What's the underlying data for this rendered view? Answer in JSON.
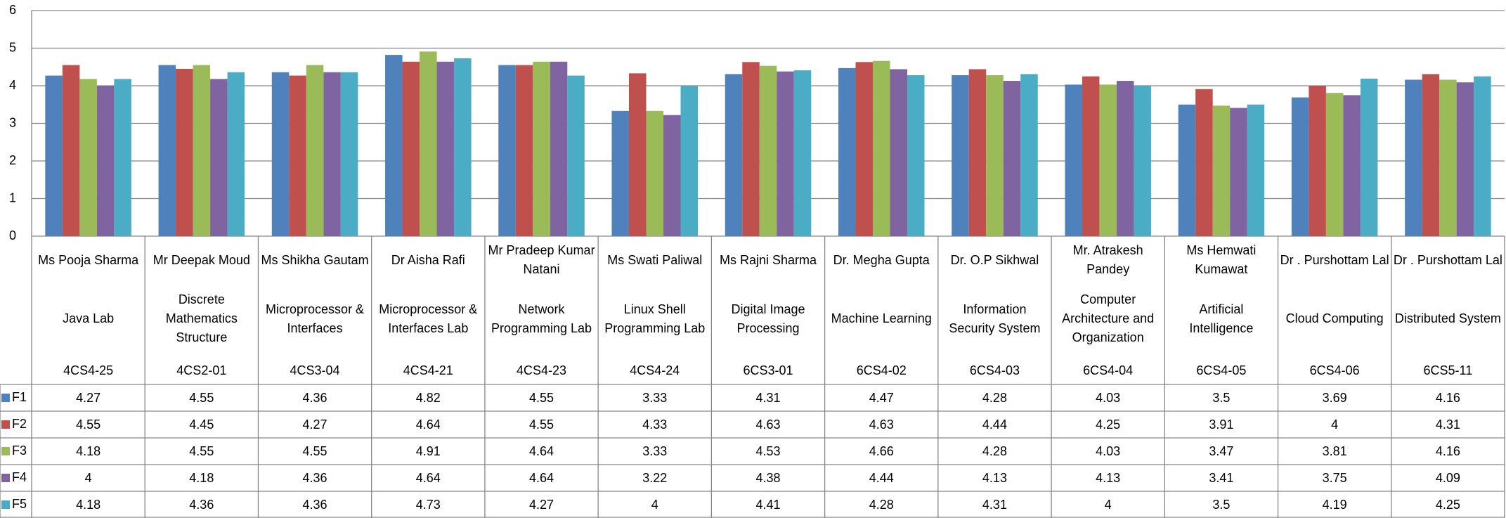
{
  "chart_data": {
    "type": "bar",
    "categories": [
      {
        "name": "Ms Pooja Sharma",
        "subject": "Java Lab",
        "code": "4CS4-25"
      },
      {
        "name": "Mr Deepak Moud",
        "subject": "Discrete Mathematics Structure",
        "code": "4CS2-01"
      },
      {
        "name": "Ms Shikha Gautam",
        "subject": "Microprocessor & Interfaces",
        "code": "4CS3-04"
      },
      {
        "name": "Dr Aisha Rafi",
        "subject": "Microprocessor & Interfaces Lab",
        "code": "4CS4-21"
      },
      {
        "name": "Mr Pradeep Kumar Natani",
        "subject": "Network Programming Lab",
        "code": "4CS4-23"
      },
      {
        "name": "Ms Swati Paliwal",
        "subject": "Linux Shell Programming Lab",
        "code": "4CS4-24"
      },
      {
        "name": "Ms Rajni Sharma",
        "subject": "Digital Image Processing",
        "code": "6CS3-01"
      },
      {
        "name": "Dr. Megha Gupta",
        "subject": "Machine Learning",
        "code": "6CS4-02"
      },
      {
        "name": "Dr. O.P Sikhwal",
        "subject": "Information Security System",
        "code": "6CS4-03"
      },
      {
        "name": "Mr. Atrakesh Pandey",
        "subject": "Computer Architecture and Organization",
        "code": "6CS4-04"
      },
      {
        "name": "Ms Hemwati Kumawat",
        "subject": "Artificial Intelligence",
        "code": "6CS4-05"
      },
      {
        "name": "Dr . Purshottam Lal",
        "subject": "Cloud Computing",
        "code": "6CS4-06"
      },
      {
        "name": "Dr . Purshottam Lal",
        "subject": "Distributed System",
        "code": "6CS5-11"
      }
    ],
    "series": [
      {
        "name": "F1",
        "color": "#4f81bd",
        "values": [
          4.27,
          4.55,
          4.36,
          4.82,
          4.55,
          3.33,
          4.31,
          4.47,
          4.28,
          4.03,
          3.5,
          3.69,
          4.16
        ]
      },
      {
        "name": "F2",
        "color": "#c0504d",
        "values": [
          4.55,
          4.45,
          4.27,
          4.64,
          4.55,
          4.33,
          4.63,
          4.63,
          4.44,
          4.25,
          3.91,
          4,
          4.31
        ]
      },
      {
        "name": "F3",
        "color": "#9bbb59",
        "values": [
          4.18,
          4.55,
          4.55,
          4.91,
          4.64,
          3.33,
          4.53,
          4.66,
          4.28,
          4.03,
          3.47,
          3.81,
          4.16
        ]
      },
      {
        "name": "F4",
        "color": "#8064a2",
        "values": [
          4,
          4.18,
          4.36,
          4.64,
          4.64,
          3.22,
          4.38,
          4.44,
          4.13,
          4.13,
          3.41,
          3.75,
          4.09
        ]
      },
      {
        "name": "F5",
        "color": "#4bacc6",
        "values": [
          4.18,
          4.36,
          4.36,
          4.73,
          4.27,
          4,
          4.41,
          4.28,
          4.31,
          4,
          3.5,
          4.19,
          4.25
        ]
      }
    ],
    "ylim": [
      0,
      6
    ],
    "yticks": [
      0,
      1,
      2,
      3,
      4,
      5,
      6
    ],
    "grid": true
  }
}
